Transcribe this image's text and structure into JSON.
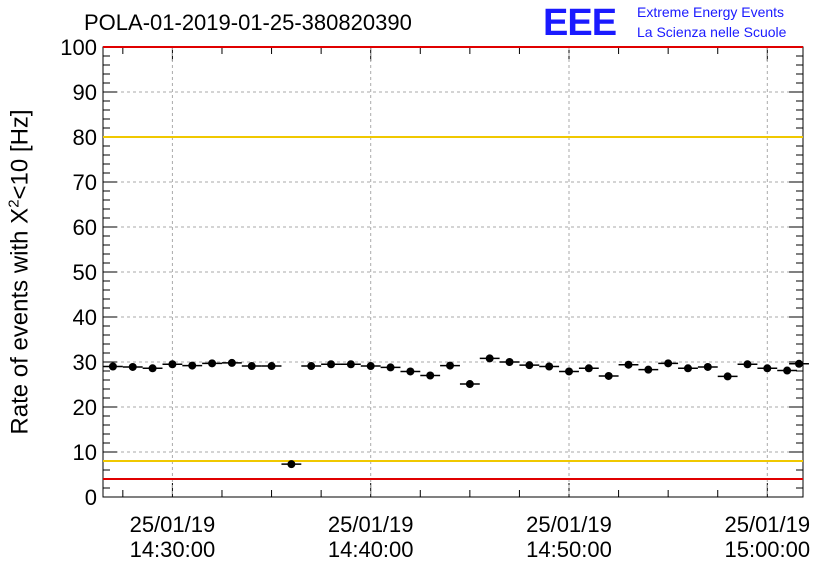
{
  "title": "POLA-01-2019-01-25-380820390",
  "logo": {
    "mark": "EEE",
    "line1": "Extreme Energy Events",
    "line2": "La Scienza nelle Scuole",
    "color": "#1a1aff"
  },
  "chart_data": {
    "type": "scatter",
    "title": "POLA-01-2019-01-25-380820390",
    "ylabel_main": "Rate of events with X",
    "ylabel_sup": "2",
    "ylabel_tail": "<10 [Hz]",
    "ylim": [
      0,
      100
    ],
    "yticks": [
      "0",
      "10",
      "20",
      "30",
      "40",
      "50",
      "60",
      "70",
      "80",
      "90",
      "100"
    ],
    "xlim_minutes": [
      -3.5,
      31.8
    ],
    "xticks": [
      {
        "minute": 0,
        "date": "25/01/19",
        "time": "14:30:00"
      },
      {
        "minute": 10,
        "date": "25/01/19",
        "time": "14:40:00"
      },
      {
        "minute": 20,
        "date": "25/01/19",
        "time": "14:50:00"
      },
      {
        "minute": 30,
        "date": "25/01/19",
        "time": "15:00:00"
      }
    ],
    "x_reference_time": "14:30:00",
    "grid": true,
    "reference_lines": [
      {
        "y": 80,
        "color": "#f0c800"
      },
      {
        "y": 8,
        "color": "#f0c800"
      },
      {
        "y": 4,
        "color": "#e00000"
      },
      {
        "y": 100,
        "color": "#e00000"
      }
    ],
    "points_x_minutes": [
      -3,
      -2,
      -1,
      0,
      1,
      2,
      3,
      4,
      5,
      6,
      7,
      8,
      9,
      10,
      11,
      12,
      13,
      14,
      15,
      16,
      17,
      18,
      19,
      20,
      21,
      22,
      23,
      24,
      25,
      26,
      27,
      28,
      29,
      30,
      31
    ],
    "points_y": [
      29.0,
      28.9,
      28.6,
      29.5,
      29.2,
      29.7,
      29.8,
      29.1,
      29.1,
      7.3,
      29.1,
      29.5,
      29.5,
      29.1,
      28.8,
      27.9,
      27.0,
      29.2,
      25.1,
      30.8,
      30.0,
      29.3,
      29.0,
      27.9,
      28.6,
      26.9,
      29.4,
      28.3,
      29.7,
      28.6,
      28.9,
      26.8,
      29.5,
      28.6,
      28.1
    ],
    "last_point": {
      "x_minutes": 31.6,
      "y": 29.6
    },
    "series_color": "#000000"
  }
}
